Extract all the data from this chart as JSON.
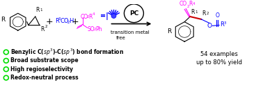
{
  "bg_color": "#ffffff",
  "figsize": [
    3.78,
    1.26
  ],
  "dpi": 100,
  "magenta": "#ff00ff",
  "blue": "#0000ff",
  "red": "#cc0000",
  "black": "#000000",
  "green": "#00dd00",
  "bullet_texts": [
    "Benzylic C(sp$^3$)-C(sp$^3$) bond formation",
    "Broad substrate scope",
    "High regioselectivity",
    "Redox-neutral process"
  ],
  "right_text_line1": "54 examples",
  "right_text_line2": "up to 80% yield"
}
